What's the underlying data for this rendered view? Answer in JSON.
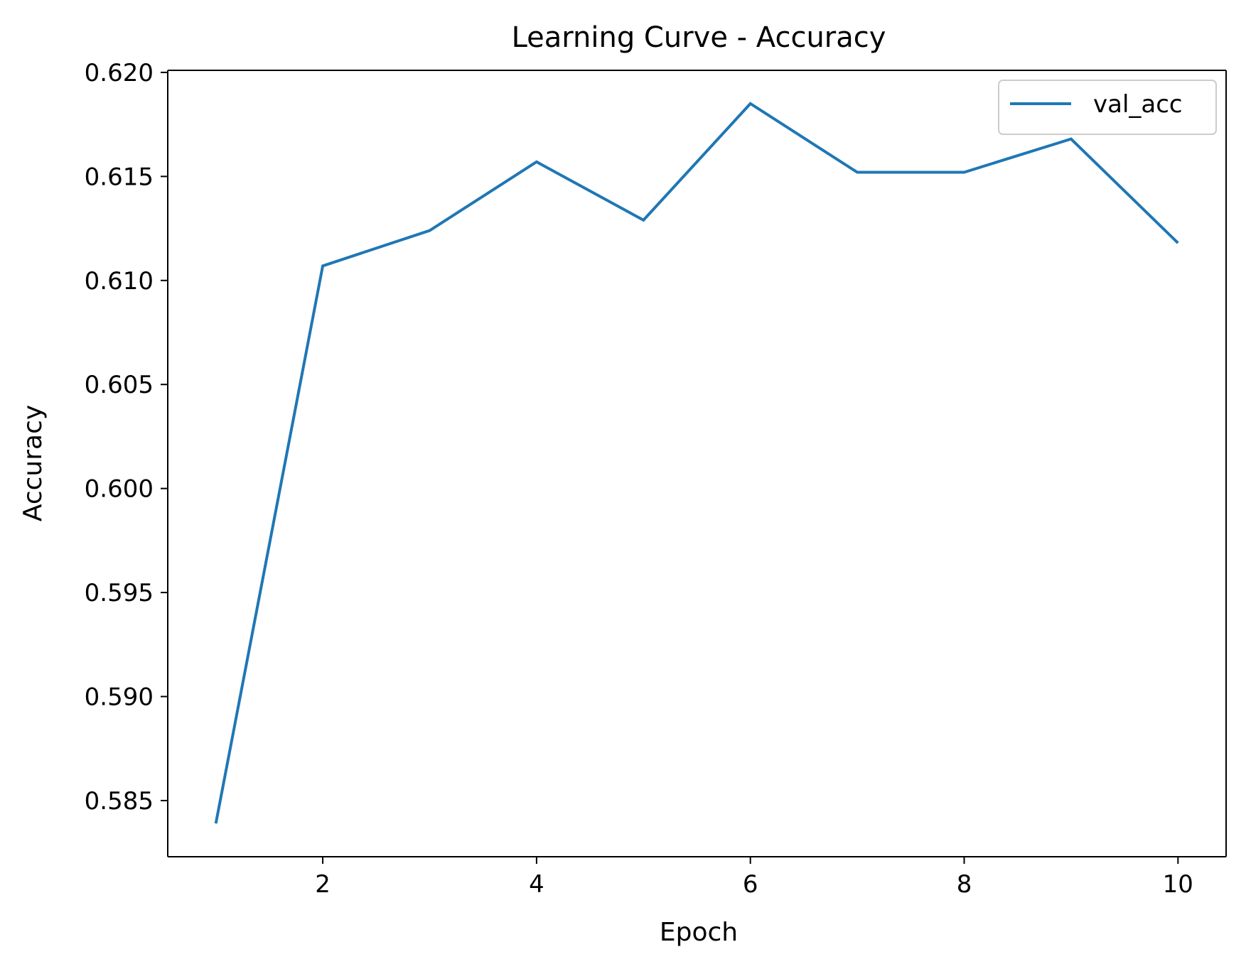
{
  "chart_data": {
    "type": "line",
    "title": "Learning Curve - Accuracy",
    "xlabel": "Epoch",
    "ylabel": "Accuracy",
    "x": [
      1,
      2,
      3,
      4,
      5,
      6,
      7,
      8,
      9,
      10
    ],
    "xlim": [
      0.55,
      10.45
    ],
    "ylim": [
      0.5823,
      0.6201
    ],
    "xticks": [
      2,
      4,
      6,
      8,
      10
    ],
    "xtick_labels": [
      "2",
      "4",
      "6",
      "8",
      "10"
    ],
    "yticks": [
      0.585,
      0.59,
      0.595,
      0.6,
      0.605,
      0.61,
      0.615,
      0.62
    ],
    "ytick_labels": [
      "0.585",
      "0.590",
      "0.595",
      "0.600",
      "0.605",
      "0.610",
      "0.615",
      "0.620"
    ],
    "grid": false,
    "legend_position": "top-right",
    "series": [
      {
        "name": "val_acc",
        "color": "#1f77b4",
        "values": [
          0.5839,
          0.6107,
          0.6124,
          0.6157,
          0.6129,
          0.6185,
          0.6152,
          0.6152,
          0.6168,
          0.6118
        ]
      }
    ]
  }
}
